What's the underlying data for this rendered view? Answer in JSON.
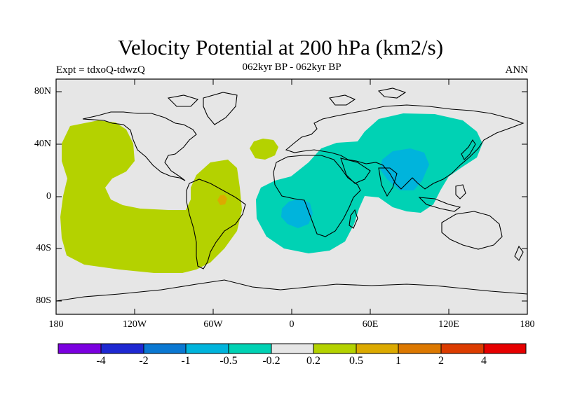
{
  "title": "Velocity Potential at 200 hPa (km2/s)",
  "left_string": "Expt = tdxoQ-tdwzQ",
  "center_string": "062kyr BP - 062kyr BP",
  "right_string": "ANN",
  "lat_labels": [
    "80N",
    "40N",
    "0",
    "40S",
    "80S"
  ],
  "lon_labels": [
    "180",
    "120W",
    "60W",
    "0",
    "60E",
    "120E",
    "180"
  ],
  "colorbar": {
    "labels": [
      "-4",
      "-2",
      "-1",
      "-0.5",
      "-0.2",
      "0.2",
      "0.5",
      "1",
      "2",
      "4"
    ],
    "colors": [
      "#7b00e0",
      "#1e28d2",
      "#0a78d2",
      "#00b4dc",
      "#00d2b4",
      "#e6e6e6",
      "#b4d200",
      "#dcaa00",
      "#dc7800",
      "#dc3c00",
      "#e60000"
    ]
  },
  "fill_colors": {
    "background": "#e6e6e6",
    "positive_02": "#b4d200",
    "positive_05": "#dcaa00",
    "negative_02": "#00d2b4",
    "negative_05": "#00b4dc"
  }
}
